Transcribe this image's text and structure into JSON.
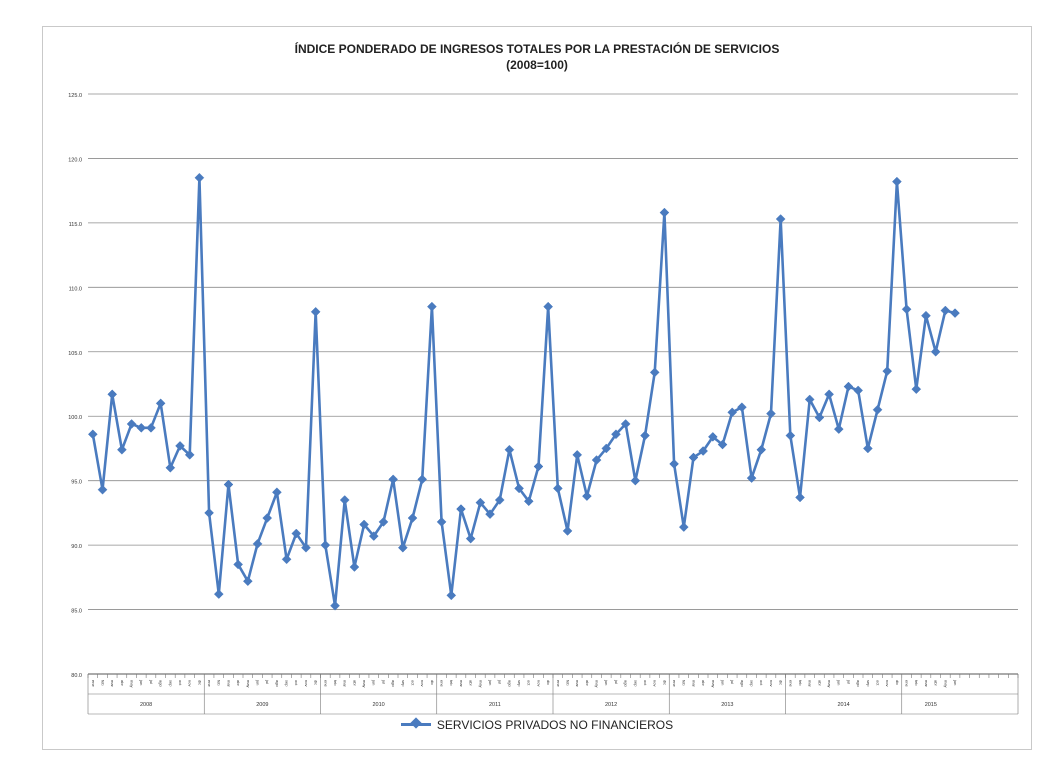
{
  "chart_data": {
    "type": "line",
    "title": "ÍNDICE PONDERADO DE INGRESOS TOTALES POR LA PRESTACIÓN DE SERVICIOS",
    "subtitle": "(2008=100)",
    "ylim": [
      80,
      125
    ],
    "yticks": [
      "80.0",
      "85.0",
      "90.0",
      "95.0",
      "100.0",
      "105.0",
      "110.0",
      "115.0",
      "120.0",
      "125.0"
    ],
    "grid": true,
    "legend_position": "bottom",
    "month_labels": [
      "ene",
      "feb",
      "mar",
      "abr",
      "may",
      "jun",
      "jul",
      "ago",
      "sep",
      "oct",
      "nov",
      "dic"
    ],
    "years": [
      "2008",
      "2009",
      "2010",
      "2011",
      "2012",
      "2013",
      "2014",
      "2015"
    ],
    "series": [
      {
        "name": "SERVICIOS PRIVADOS NO FINANCIEROS",
        "color": "#4a7bbf",
        "values": [
          98.6,
          94.3,
          101.7,
          97.4,
          99.4,
          99.1,
          99.1,
          101.0,
          96.0,
          97.7,
          97.0,
          118.5,
          92.5,
          86.2,
          94.7,
          88.5,
          87.2,
          90.1,
          92.1,
          94.1,
          88.9,
          90.9,
          89.8,
          108.1,
          90.0,
          85.3,
          93.5,
          88.3,
          91.6,
          90.7,
          91.8,
          95.1,
          89.8,
          92.1,
          95.1,
          108.5,
          91.8,
          86.1,
          92.8,
          90.5,
          93.3,
          92.4,
          93.5,
          97.4,
          94.4,
          93.4,
          96.1,
          108.5,
          94.4,
          91.1,
          97.0,
          93.8,
          96.6,
          97.5,
          98.6,
          99.4,
          95.0,
          98.5,
          103.4,
          115.8,
          96.3,
          91.4,
          96.8,
          97.3,
          98.4,
          97.8,
          100.3,
          100.7,
          95.2,
          97.4,
          100.2,
          115.3,
          98.5,
          93.7,
          101.3,
          99.9,
          101.7,
          99.0,
          102.3,
          102.0,
          97.5,
          100.5,
          103.5,
          118.2,
          108.3,
          102.1,
          107.8,
          105.0,
          108.2,
          108.0
        ]
      }
    ]
  }
}
